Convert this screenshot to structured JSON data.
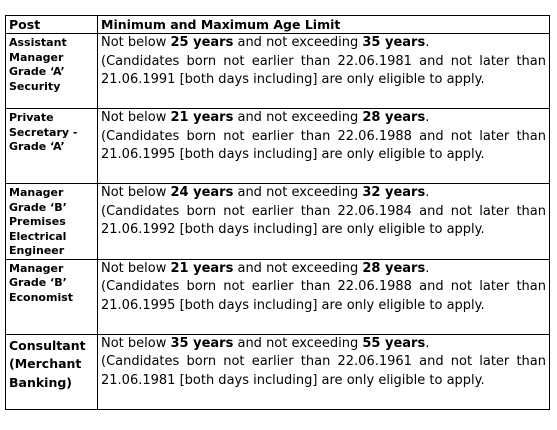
{
  "table": {
    "header": [
      "Post",
      "Minimum and Maximum Age Limit"
    ],
    "rows": [
      {
        "post": "Assistant Manager Grade ‘A’ Security",
        "age": [
          {
            "text": "Not below "
          },
          {
            "text": "25 years",
            "bold": true
          },
          {
            "text": " and not exceeding "
          },
          {
            "text": "35 years",
            "bold": true
          },
          {
            "text": "."
          }
        ],
        "note": "(Candidates born not earlier than 22.06.1981 and not later than 21.06.1991 [both days including] are only eligible to apply."
      },
      {
        "post": "Private Secretary - Grade ‘A’",
        "age": [
          {
            "text": "Not below "
          },
          {
            "text": "21 years",
            "bold": true
          },
          {
            "text": " and not exceeding "
          },
          {
            "text": "28 years",
            "bold": true
          },
          {
            "text": "."
          }
        ],
        "note": "(Candidates born not earlier than 22.06.1988 and not later than 21.06.1995 [both days including] are only eligible to apply."
      },
      {
        "post": "Manager Grade ‘B’ Premises Electrical Engineer",
        "age": [
          {
            "text": "Not below "
          },
          {
            "text": "24 years",
            "bold": true
          },
          {
            "text": " and not exceeding "
          },
          {
            "text": "32 years",
            "bold": true
          },
          {
            "text": "."
          }
        ],
        "note": "(Candidates born not earlier than 22.06.1984 and not later than 21.06.1992 [both days including] are only eligible to apply."
      },
      {
        "post": "Manager Grade ‘B’ Economist",
        "age": [
          {
            "text": "Not below "
          },
          {
            "text": "21 years",
            "bold": true
          },
          {
            "text": " and not exceeding "
          },
          {
            "text": "28 years",
            "bold": true
          },
          {
            "text": "."
          }
        ],
        "note": "(Candidates born not earlier than 22.06.1988 and not later than 21.06.1995 [both days including] are only eligible to apply."
      },
      {
        "post": "Consultant (Merchant Banking)",
        "large": true,
        "age": [
          {
            "text": "Not below "
          },
          {
            "text": "35 years",
            "bold": true
          },
          {
            "text": " and not exceeding "
          },
          {
            "text": "55 years",
            "bold": true
          },
          {
            "text": "."
          }
        ],
        "note": "(Candidates born not earlier than 22.06.1961 and not later than 21.06.1981 [both days including] are only eligible to apply."
      }
    ]
  }
}
